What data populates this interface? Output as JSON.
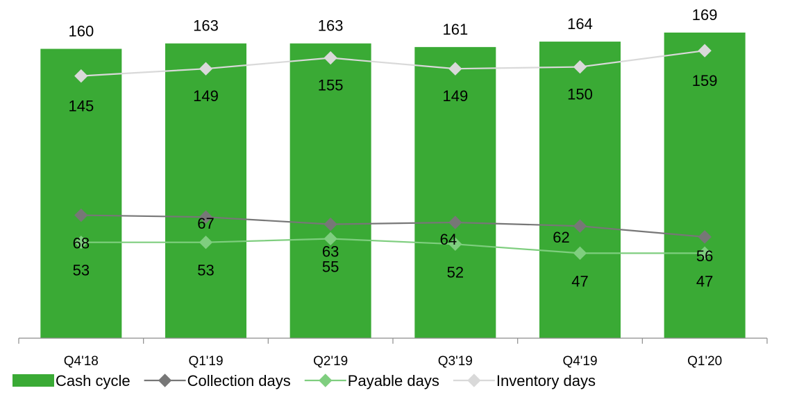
{
  "chart_data": {
    "type": "bar",
    "categories": [
      "Q4'18",
      "Q1'19",
      "Q2'19",
      "Q3'19",
      "Q4'19",
      "Q1'20"
    ],
    "series": [
      {
        "name": "Cash cycle",
        "kind": "bar",
        "values": [
          160,
          163,
          163,
          161,
          164,
          169
        ],
        "color": "#3aaa35"
      },
      {
        "name": "Collection days",
        "kind": "line",
        "values": [
          68,
          67,
          63,
          64,
          62,
          56
        ],
        "color": "#777777"
      },
      {
        "name": "Payable days",
        "kind": "line",
        "values": [
          53,
          53,
          55,
          52,
          47,
          47
        ],
        "color": "#7fce7f"
      },
      {
        "name": "Inventory days",
        "kind": "line",
        "values": [
          145,
          149,
          155,
          149,
          150,
          159
        ],
        "color": "#d9d9d9"
      }
    ],
    "ylim": [
      0,
      175
    ],
    "grid": false,
    "legend_position": "bottom",
    "data_labels": true
  }
}
